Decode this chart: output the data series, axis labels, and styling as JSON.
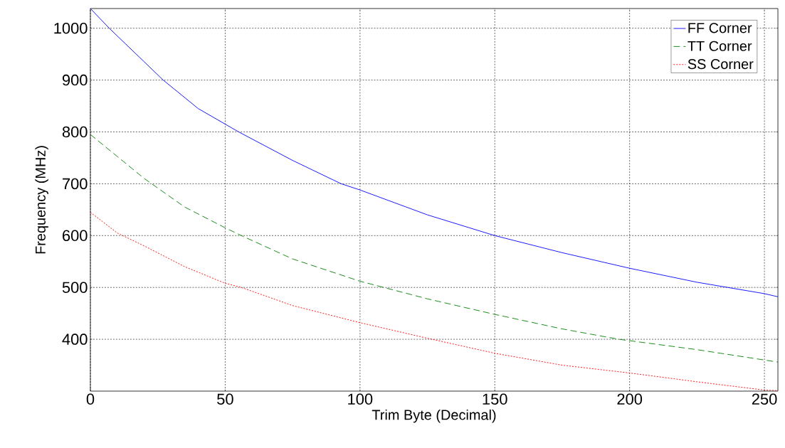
{
  "chart_data": {
    "type": "line",
    "xlabel": "Trim Byte (Decimal)",
    "ylabel": "Frequency (MHz)",
    "xlim": [
      0,
      255
    ],
    "ylim": [
      300,
      1038
    ],
    "xticks": [
      0,
      50,
      100,
      150,
      200,
      250
    ],
    "yticks": [
      400,
      500,
      600,
      700,
      800,
      900,
      1000
    ],
    "grid": true,
    "legend": "top right",
    "marker": "none",
    "series": [
      {
        "name": "FF Corner",
        "color": "#0000ff",
        "line_style": "solid",
        "x": [
          0,
          7,
          10,
          20,
          27,
          40,
          55,
          75,
          93,
          100,
          125,
          150,
          175,
          200,
          225,
          250,
          255
        ],
        "values": [
          1038,
          1000,
          985,
          935,
          900,
          845,
          800,
          745,
          700,
          688,
          640,
          600,
          567,
          537,
          510,
          488,
          482
        ]
      },
      {
        "name": "TT Corner",
        "color": "#008000",
        "line_style": "dashed",
        "x": [
          0,
          20,
          35,
          50,
          56,
          75,
          100,
          125,
          150,
          175,
          196,
          225,
          250,
          255
        ],
        "values": [
          795,
          710,
          655,
          615,
          600,
          555,
          512,
          478,
          448,
          420,
          400,
          380,
          360,
          356
        ]
      },
      {
        "name": "SS Corner",
        "color": "#ff0000",
        "line_style": "dotted",
        "x": [
          0,
          10,
          20,
          35,
          50,
          56,
          75,
          100,
          125,
          150,
          175,
          200,
          225,
          250,
          255
        ],
        "values": [
          645,
          605,
          580,
          540,
          508,
          500,
          465,
          432,
          402,
          373,
          350,
          335,
          318,
          302,
          301
        ]
      }
    ]
  }
}
